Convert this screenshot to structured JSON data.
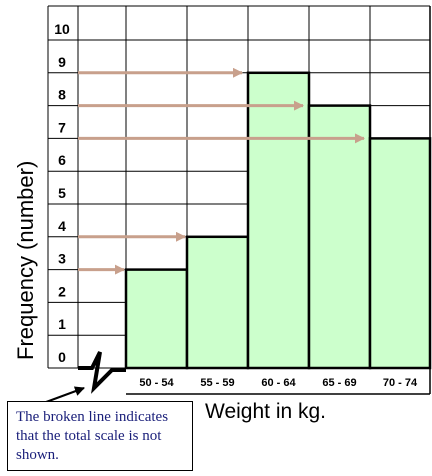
{
  "chart_data": {
    "type": "bar",
    "categories": [
      "50 - 54",
      "55 - 59",
      "60 - 64",
      "65 - 69",
      "70 - 74"
    ],
    "values": [
      3,
      4,
      9,
      8,
      7
    ],
    "xlabel": "Weight in kg.",
    "ylabel": "Frequency (number)",
    "ylim": [
      0,
      10
    ],
    "y_ticks": [
      "0",
      "1",
      "2",
      "3",
      "4",
      "5",
      "6",
      "7",
      "8",
      "9",
      "10"
    ],
    "grid": true,
    "broken_axis": true,
    "arrows_to_values": [
      3,
      4,
      9,
      8,
      7
    ],
    "colors": {
      "bar_fill": "#ccffcc",
      "bar_edge": "#000000",
      "grid": "#000000",
      "arrow": "#c8a08c",
      "callout_text": "#1a1f7a"
    }
  },
  "callout": {
    "text": "The broken line indicates that the total scale is not shown."
  }
}
